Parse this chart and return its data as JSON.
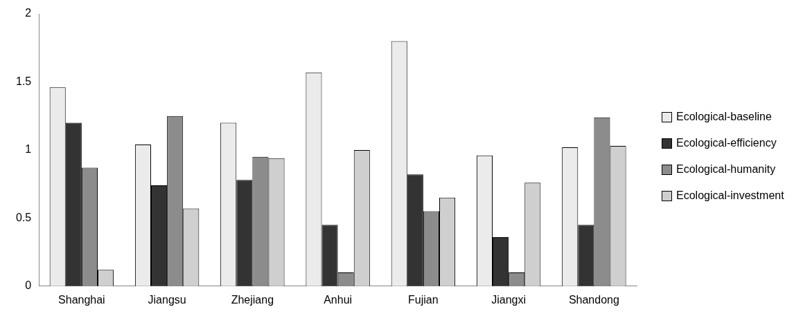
{
  "chart_data": {
    "type": "bar",
    "categories": [
      "Shanghai",
      "Jiangsu",
      "Zhejiang",
      "Anhui",
      "Fujian",
      "Jiangxi",
      "Shandong"
    ],
    "series": [
      {
        "name": "Ecological-baseline",
        "color": "#ebebeb",
        "values": [
          1.46,
          1.04,
          1.2,
          1.57,
          1.8,
          0.96,
          1.02
        ]
      },
      {
        "name": "Ecological-efficiency",
        "color": "#333333",
        "values": [
          1.2,
          0.74,
          0.78,
          0.45,
          0.82,
          0.36,
          0.45
        ]
      },
      {
        "name": "Ecological-humanity",
        "color": "#8c8c8c",
        "values": [
          0.87,
          1.25,
          0.95,
          0.1,
          0.55,
          0.1,
          1.24
        ]
      },
      {
        "name": "Ecological-investment",
        "color": "#cfcfcf",
        "values": [
          0.12,
          0.57,
          0.94,
          1.0,
          0.65,
          0.76,
          1.03
        ]
      }
    ],
    "ylim": [
      0,
      2
    ],
    "yticks": [
      0,
      0.5,
      1,
      1.5,
      2
    ],
    "grid": false,
    "legend": "right"
  }
}
